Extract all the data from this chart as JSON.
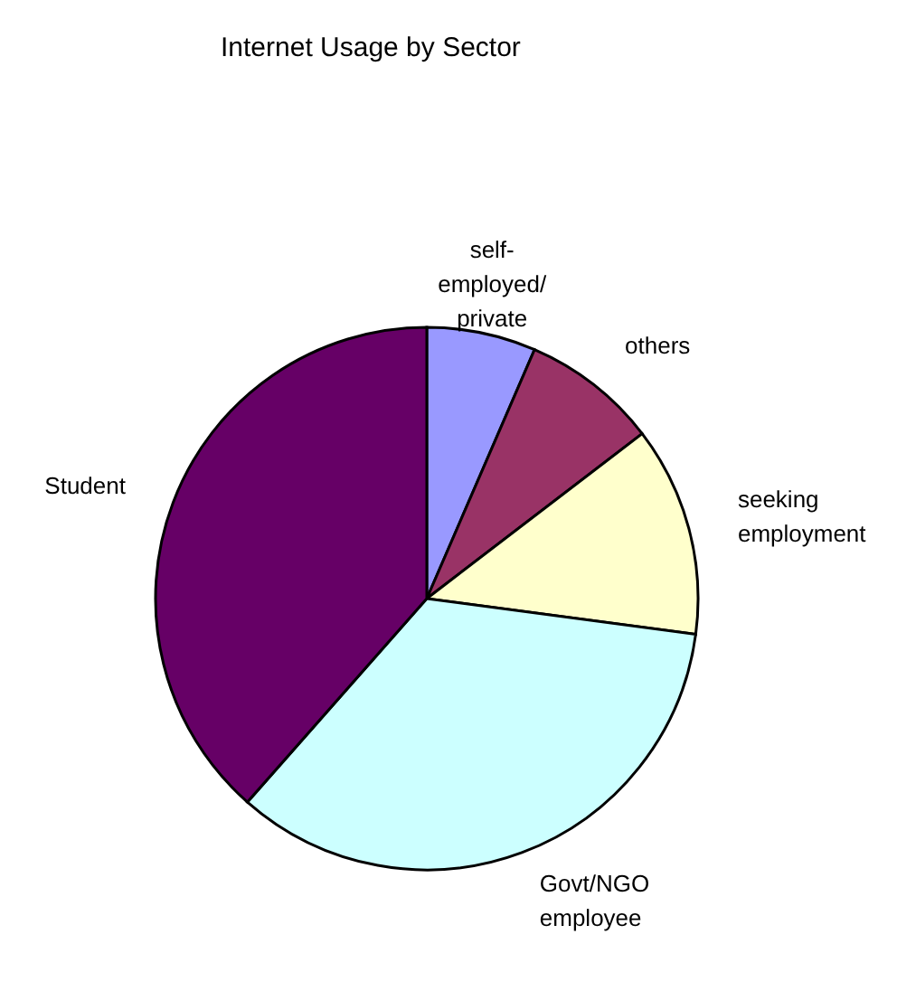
{
  "chart_data": {
    "type": "pie",
    "title": "Internet Usage by Sector",
    "categories": [
      "self-employed/private",
      "others",
      "seeking employment",
      "Govt/NGO employee",
      "Student"
    ],
    "values": [
      6.5,
      8.1,
      12.5,
      34.4,
      38.5
    ],
    "colors": [
      "#9999ff",
      "#993366",
      "#ffffcc",
      "#ccffff",
      "#660066"
    ],
    "legend": false
  }
}
